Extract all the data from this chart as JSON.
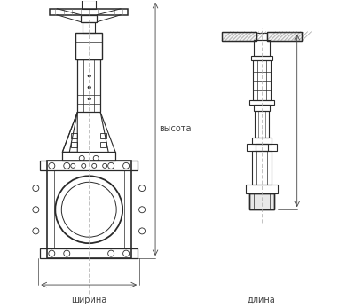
{
  "bg_color": "#ffffff",
  "line_color": "#2a2a2a",
  "dim_line_color": "#444444",
  "label_width": "ширина",
  "label_height": "высота",
  "label_length": "длина",
  "fig_width": 4.0,
  "fig_height": 3.46,
  "dpi": 100
}
